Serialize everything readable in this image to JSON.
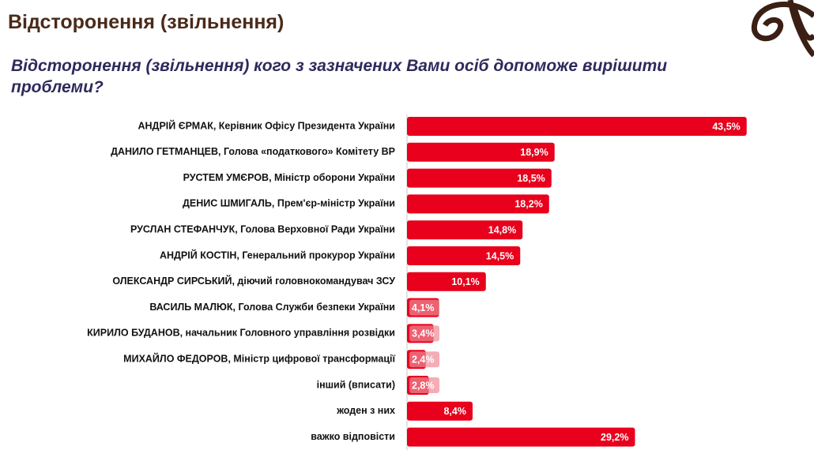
{
  "chart_data": {
    "type": "bar",
    "orientation": "horizontal",
    "title": "Відсторонення (звільнення)",
    "subtitle": "Відсторонення (звільнення) кого з зазначених Вами осіб допоможе вирішити проблеми?",
    "color": "#e8001c",
    "categories": [
      "АНДРІЙ ЄРМАК, Керівник Офісу Президента України",
      "ДАНИЛО ГЕТМАНЦЕВ, Голова «податкового» Комітету ВР",
      "РУСТЕМ УМЄРОВ, Міністр оборони України",
      "ДЕНИС ШМИГАЛЬ, Прем'єр-міністр України",
      "РУСЛАН СТЕФАНЧУК, Голова Верховної Ради України",
      "АНДРІЙ КОСТІН, Генеральний прокурор України",
      "ОЛЕКСАНДР СИРСЬКИЙ, діючий головнокомандувач ЗСУ",
      "ВАСИЛЬ МАЛЮК, Голова Служби безпеки України",
      "КИРИЛО БУДАНОВ, начальник Головного управління розвідки",
      "МИХАЙЛО ФЕДОРОВ, Міністр цифрової трансформації",
      "інший (вписати)",
      "жоден з них",
      "важко відповісти"
    ],
    "values": [
      43.5,
      18.9,
      18.5,
      18.2,
      14.8,
      14.5,
      10.1,
      4.1,
      3.4,
      2.4,
      2.8,
      8.4,
      29.2
    ],
    "value_labels": [
      "43,5%",
      "18,9%",
      "18,5%",
      "18,2%",
      "14,8%",
      "14,5%",
      "10,1%",
      "4,1%",
      "3,4%",
      "2,4%",
      "2,8%",
      "8,4%",
      "29,2%"
    ]
  }
}
